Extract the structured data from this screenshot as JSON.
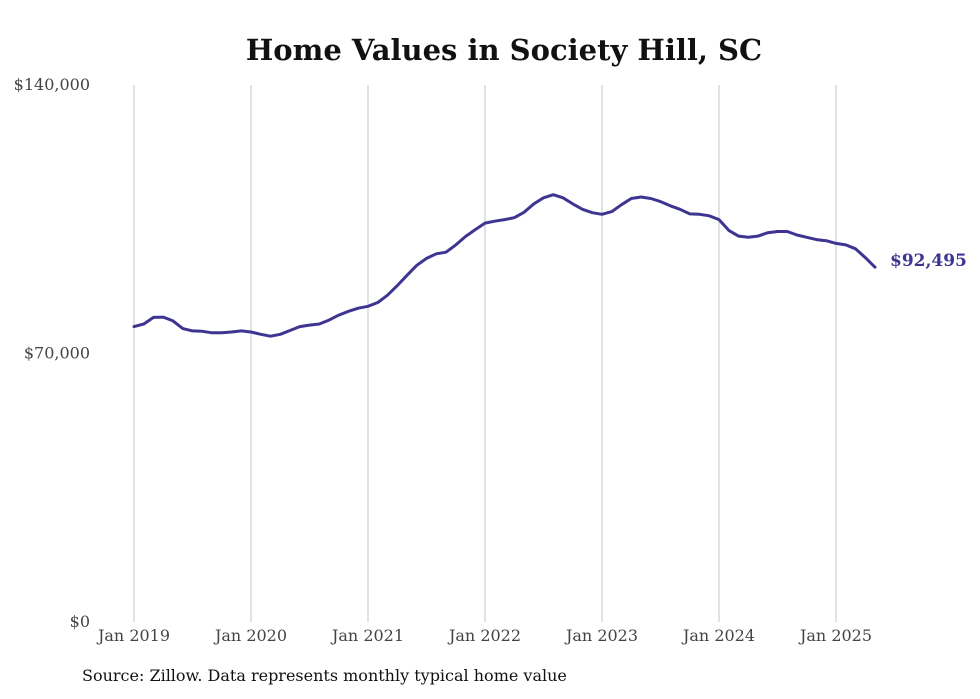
{
  "source_note": "Source: Zillow. Data represents monthly typical home value",
  "chart_data": {
    "type": "line",
    "title": "Home Values in Society Hill, SC",
    "xlabel": "",
    "ylabel": "",
    "ylim": [
      0,
      140000
    ],
    "y_ticks": [
      {
        "value": 0,
        "label": "$0"
      },
      {
        "value": 70000,
        "label": "$70,000"
      },
      {
        "value": 140000,
        "label": "$140,000"
      }
    ],
    "x_ticks": [
      {
        "value": "2019-01",
        "label": "Jan 2019"
      },
      {
        "value": "2020-01",
        "label": "Jan 2020"
      },
      {
        "value": "2021-01",
        "label": "Jan 2021"
      },
      {
        "value": "2022-01",
        "label": "Jan 2022"
      },
      {
        "value": "2023-01",
        "label": "Jan 2023"
      },
      {
        "value": "2024-01",
        "label": "Jan 2024"
      },
      {
        "value": "2025-01",
        "label": "Jan 2025"
      }
    ],
    "grid": {
      "vertical": true,
      "horizontal": false
    },
    "line_color": "#3d3591",
    "end_label": "$92,495",
    "series": [
      {
        "x": [
          "2019-01",
          "2019-02",
          "2019-03",
          "2019-04",
          "2019-05",
          "2019-06",
          "2019-07",
          "2019-08",
          "2019-09",
          "2019-10",
          "2019-11",
          "2019-12",
          "2020-01",
          "2020-02",
          "2020-03",
          "2020-04",
          "2020-05",
          "2020-06",
          "2020-07",
          "2020-08",
          "2020-09",
          "2020-10",
          "2020-11",
          "2020-12",
          "2021-01",
          "2021-02",
          "2021-03",
          "2021-04",
          "2021-05",
          "2021-06",
          "2021-07",
          "2021-08",
          "2021-09",
          "2021-10",
          "2021-11",
          "2021-12",
          "2022-01",
          "2022-02",
          "2022-03",
          "2022-04",
          "2022-05",
          "2022-06",
          "2022-07",
          "2022-08",
          "2022-09",
          "2022-10",
          "2022-11",
          "2022-12",
          "2023-01",
          "2023-02",
          "2023-03",
          "2023-04",
          "2023-05",
          "2023-06",
          "2023-07",
          "2023-08",
          "2023-09",
          "2023-10",
          "2023-11",
          "2023-12",
          "2024-01",
          "2024-02",
          "2024-03",
          "2024-04",
          "2024-05",
          "2024-06",
          "2024-07",
          "2024-08",
          "2024-09",
          "2024-10",
          "2024-11",
          "2024-12",
          "2025-01",
          "2025-02",
          "2025-03",
          "2025-04",
          "2025-05"
        ],
        "values": [
          77000,
          77700,
          79400,
          79500,
          78500,
          76500,
          75900,
          75800,
          75400,
          75400,
          75600,
          75900,
          75600,
          75000,
          74500,
          75000,
          76000,
          77000,
          77400,
          77700,
          78700,
          80000,
          81000,
          81800,
          82300,
          83300,
          85200,
          87700,
          90400,
          93000,
          94800,
          96000,
          96400,
          98300,
          100500,
          102300,
          104000,
          104500,
          104900,
          105400,
          106800,
          109000,
          110600,
          111400,
          110600,
          109000,
          107600,
          106700,
          106300,
          107000,
          108800,
          110400,
          110800,
          110400,
          109600,
          108500,
          107600,
          106400,
          106300,
          105900,
          104900,
          102100,
          100600,
          100300,
          100600,
          101500,
          101800,
          101800,
          100900,
          100300,
          99700,
          99400,
          98700,
          98300,
          97300,
          95000,
          92495
        ]
      }
    ]
  }
}
